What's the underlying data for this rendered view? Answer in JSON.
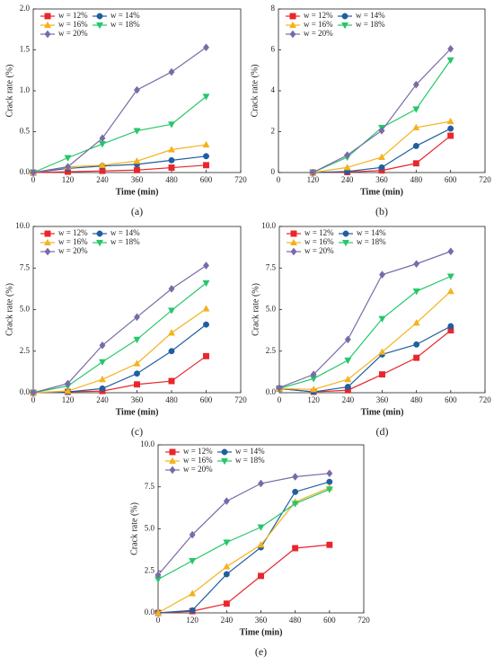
{
  "chart_data": [
    {
      "type": "line",
      "caption": "(a)",
      "xlabel": "Time (min)",
      "ylabel": "Crack rate (%)",
      "x": [
        0,
        120,
        240,
        360,
        480,
        600
      ],
      "xlim": [
        0,
        720
      ],
      "xticks": [
        0,
        120,
        240,
        360,
        480,
        600,
        720
      ],
      "ylim": [
        0,
        2
      ],
      "yticks": [
        {
          "value": 0,
          "label": "0.0"
        },
        0.5,
        {
          "value": 1,
          "label": "1.0"
        },
        1.5,
        {
          "value": 2,
          "label": "2.0"
        }
      ],
      "legend": "upper left",
      "series": [
        {
          "name": "w = 12%",
          "color": "#e8262b",
          "marker": "square",
          "values": [
            0,
            0.01,
            0.02,
            0.03,
            0.06,
            0.09
          ]
        },
        {
          "name": "w = 14%",
          "color": "#1f5fa0",
          "marker": "circle",
          "values": [
            0,
            0.05,
            0.08,
            0.1,
            0.15,
            0.2
          ]
        },
        {
          "name": "w = 16%",
          "color": "#f5b21c",
          "marker": "triangle-up",
          "values": [
            0,
            0.07,
            0.09,
            0.14,
            0.28,
            0.34
          ]
        },
        {
          "name": "w = 18%",
          "color": "#25c76a",
          "marker": "triangle-down",
          "values": [
            0,
            0.18,
            0.35,
            0.51,
            0.59,
            0.93
          ]
        },
        {
          "name": "w = 20%",
          "color": "#7a6aa8",
          "marker": "diamond",
          "values": [
            0,
            0.07,
            0.42,
            1.01,
            1.23,
            1.53
          ]
        }
      ]
    },
    {
      "type": "line",
      "caption": "(b)",
      "xlabel": "Time (min)",
      "ylabel": "Crack rate (%)",
      "x": [
        0,
        120,
        240,
        360,
        480,
        600
      ],
      "xlim": [
        0,
        720
      ],
      "xticks": [
        0,
        120,
        240,
        360,
        480,
        600,
        720
      ],
      "ylim": [
        0,
        8
      ],
      "yticks": [
        0,
        2,
        4,
        6,
        8
      ],
      "legend": "upper left",
      "series": [
        {
          "name": "w = 12%",
          "color": "#e8262b",
          "marker": "square",
          "values": [
            null,
            0,
            0.02,
            0.1,
            0.45,
            1.8
          ]
        },
        {
          "name": "w = 14%",
          "color": "#1f5fa0",
          "marker": "circle",
          "values": [
            null,
            0,
            0.05,
            0.25,
            1.3,
            2.15
          ]
        },
        {
          "name": "w = 16%",
          "color": "#f5b21c",
          "marker": "triangle-up",
          "values": [
            null,
            0,
            0.25,
            0.75,
            2.2,
            2.5
          ]
        },
        {
          "name": "w = 18%",
          "color": "#25c76a",
          "marker": "triangle-down",
          "values": [
            null,
            0,
            0.75,
            2.2,
            3.1,
            5.5
          ]
        },
        {
          "name": "w = 20%",
          "color": "#7a6aa8",
          "marker": "diamond",
          "values": [
            null,
            0,
            0.85,
            2.05,
            4.3,
            6.05
          ]
        }
      ]
    },
    {
      "type": "line",
      "caption": "(c)",
      "xlabel": "Time (min)",
      "ylabel": "Crack rate (%)",
      "x": [
        0,
        120,
        240,
        360,
        480,
        600
      ],
      "xlim": [
        0,
        720
      ],
      "xticks": [
        0,
        120,
        240,
        360,
        480,
        600,
        720
      ],
      "ylim": [
        0,
        10
      ],
      "yticks": [
        {
          "value": 0,
          "label": "0.0"
        },
        2.5,
        {
          "value": 5,
          "label": "5.0"
        },
        7.5,
        {
          "value": 10,
          "label": "10.0"
        }
      ],
      "legend": "upper left",
      "series": [
        {
          "name": "w = 12%",
          "color": "#e8262b",
          "marker": "square",
          "values": [
            0,
            0.05,
            0.1,
            0.5,
            0.7,
            2.2
          ]
        },
        {
          "name": "w = 14%",
          "color": "#1f5fa0",
          "marker": "circle",
          "values": [
            0,
            0.05,
            0.25,
            1.15,
            2.5,
            4.1
          ]
        },
        {
          "name": "w = 16%",
          "color": "#f5b21c",
          "marker": "triangle-up",
          "values": [
            0,
            0.1,
            0.8,
            1.75,
            3.6,
            5.05
          ]
        },
        {
          "name": "w = 18%",
          "color": "#25c76a",
          "marker": "triangle-down",
          "values": [
            0,
            0.4,
            1.85,
            3.2,
            4.95,
            6.6
          ]
        },
        {
          "name": "w = 20%",
          "color": "#7a6aa8",
          "marker": "diamond",
          "values": [
            0,
            0.55,
            2.85,
            4.55,
            6.25,
            7.65
          ]
        }
      ]
    },
    {
      "type": "line",
      "caption": "(d)",
      "xlabel": "Time (min)",
      "ylabel": "Crack rate (%)",
      "x": [
        0,
        120,
        240,
        360,
        480,
        600
      ],
      "xlim": [
        0,
        720
      ],
      "xticks": [
        0,
        120,
        240,
        360,
        480,
        600,
        720
      ],
      "ylim": [
        0,
        10
      ],
      "yticks": [
        {
          "value": 0,
          "label": "0.0"
        },
        2.5,
        {
          "value": 5,
          "label": "5.0"
        },
        7.5,
        {
          "value": 10,
          "label": "10.0"
        }
      ],
      "legend": "upper left",
      "series": [
        {
          "name": "w = 12%",
          "color": "#e8262b",
          "marker": "square",
          "values": [
            0.25,
            0.05,
            0.15,
            1.1,
            2.1,
            3.75
          ]
        },
        {
          "name": "w = 14%",
          "color": "#1f5fa0",
          "marker": "circle",
          "values": [
            0.25,
            0.05,
            0.35,
            2.3,
            2.9,
            4.0
          ]
        },
        {
          "name": "w = 16%",
          "color": "#f5b21c",
          "marker": "triangle-up",
          "values": [
            0.25,
            0.2,
            0.8,
            2.45,
            4.2,
            6.1
          ]
        },
        {
          "name": "w = 18%",
          "color": "#25c76a",
          "marker": "triangle-down",
          "values": [
            0.25,
            0.85,
            1.95,
            4.45,
            6.1,
            7.0
          ]
        },
        {
          "name": "w = 20%",
          "color": "#7a6aa8",
          "marker": "diamond",
          "values": [
            0.3,
            1.1,
            3.2,
            7.1,
            7.75,
            8.5
          ]
        }
      ]
    },
    {
      "type": "line",
      "caption": "(e)",
      "xlabel": "Time (min)",
      "ylabel": "Crack rate (%)",
      "x": [
        0,
        120,
        240,
        360,
        480,
        600
      ],
      "xlim": [
        0,
        720
      ],
      "xticks": [
        0,
        120,
        240,
        360,
        480,
        600,
        720
      ],
      "ylim": [
        0,
        10
      ],
      "yticks": [
        {
          "value": 0,
          "label": "0.0"
        },
        2.5,
        {
          "value": 5,
          "label": "5.0"
        },
        7.5,
        {
          "value": 10,
          "label": "10.0"
        }
      ],
      "legend": "upper left",
      "series": [
        {
          "name": "w = 12%",
          "color": "#e8262b",
          "marker": "square",
          "values": [
            0,
            0.1,
            0.55,
            2.2,
            3.85,
            4.05
          ]
        },
        {
          "name": "w = 14%",
          "color": "#1f5fa0",
          "marker": "circle",
          "values": [
            0,
            0.15,
            2.3,
            3.9,
            7.2,
            7.8
          ]
        },
        {
          "name": "w = 16%",
          "color": "#f5b21c",
          "marker": "triangle-up",
          "values": [
            0,
            1.15,
            2.75,
            4.05,
            6.6,
            7.45
          ]
        },
        {
          "name": "w = 18%",
          "color": "#25c76a",
          "marker": "triangle-down",
          "values": [
            2.0,
            3.1,
            4.2,
            5.1,
            6.5,
            7.35
          ]
        },
        {
          "name": "w = 20%",
          "color": "#7a6aa8",
          "marker": "diamond",
          "values": [
            2.25,
            4.65,
            6.65,
            7.7,
            8.1,
            8.3
          ]
        }
      ]
    }
  ]
}
